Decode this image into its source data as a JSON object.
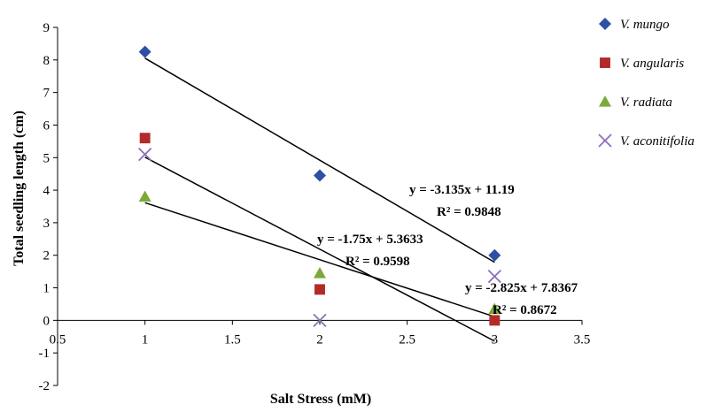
{
  "chart_data": {
    "type": "scatter",
    "xlabel": "Salt Stress (mM)",
    "ylabel": "Total seedling length (cm)",
    "xlim": [
      0.5,
      3.5
    ],
    "ylim": [
      -2,
      9
    ],
    "x_ticks": [
      "0.5",
      "1",
      "1.5",
      "2",
      "2.5",
      "3",
      "3.5"
    ],
    "y_ticks": [
      "-2",
      "-1",
      "0",
      "1",
      "2",
      "3",
      "4",
      "5",
      "6",
      "7",
      "8",
      "9"
    ],
    "grid": false,
    "legend_position": "right",
    "series": [
      {
        "name": "V. mungo",
        "marker": "diamond",
        "color": "#2E4FA3",
        "x": [
          1,
          2,
          3
        ],
        "y": [
          8.25,
          4.45,
          2.0
        ]
      },
      {
        "name": "V. angularis",
        "marker": "square",
        "color": "#B22A2A",
        "x": [
          1,
          2,
          3
        ],
        "y": [
          5.6,
          0.95,
          0.0
        ]
      },
      {
        "name": "V. radiata",
        "marker": "triangle",
        "color": "#7AAA3A",
        "x": [
          1,
          2,
          3
        ],
        "y": [
          3.8,
          1.45,
          0.35
        ]
      },
      {
        "name": "V. aconitifolia",
        "marker": "x",
        "color": "#8A6FB8",
        "x": [
          1,
          2,
          3
        ],
        "y": [
          5.1,
          0.0,
          1.35
        ]
      }
    ],
    "trendlines": [
      {
        "slope": -3.135,
        "intercept": 11.19,
        "x_range": [
          1,
          3
        ],
        "equation": "y = -3.135x  + 11.19",
        "r2": "R² = 0.9848"
      },
      {
        "slope": -2.825,
        "intercept": 7.8367,
        "x_range": [
          1,
          3
        ],
        "equation": "y = -2.825x  + 7.8367",
        "r2": "R² = 0.8672"
      },
      {
        "slope": -1.75,
        "intercept": 5.3633,
        "x_range": [
          1,
          3
        ],
        "equation": "y = -1.75x  + 5.3633",
        "r2": "R² = 0.9598"
      }
    ]
  }
}
